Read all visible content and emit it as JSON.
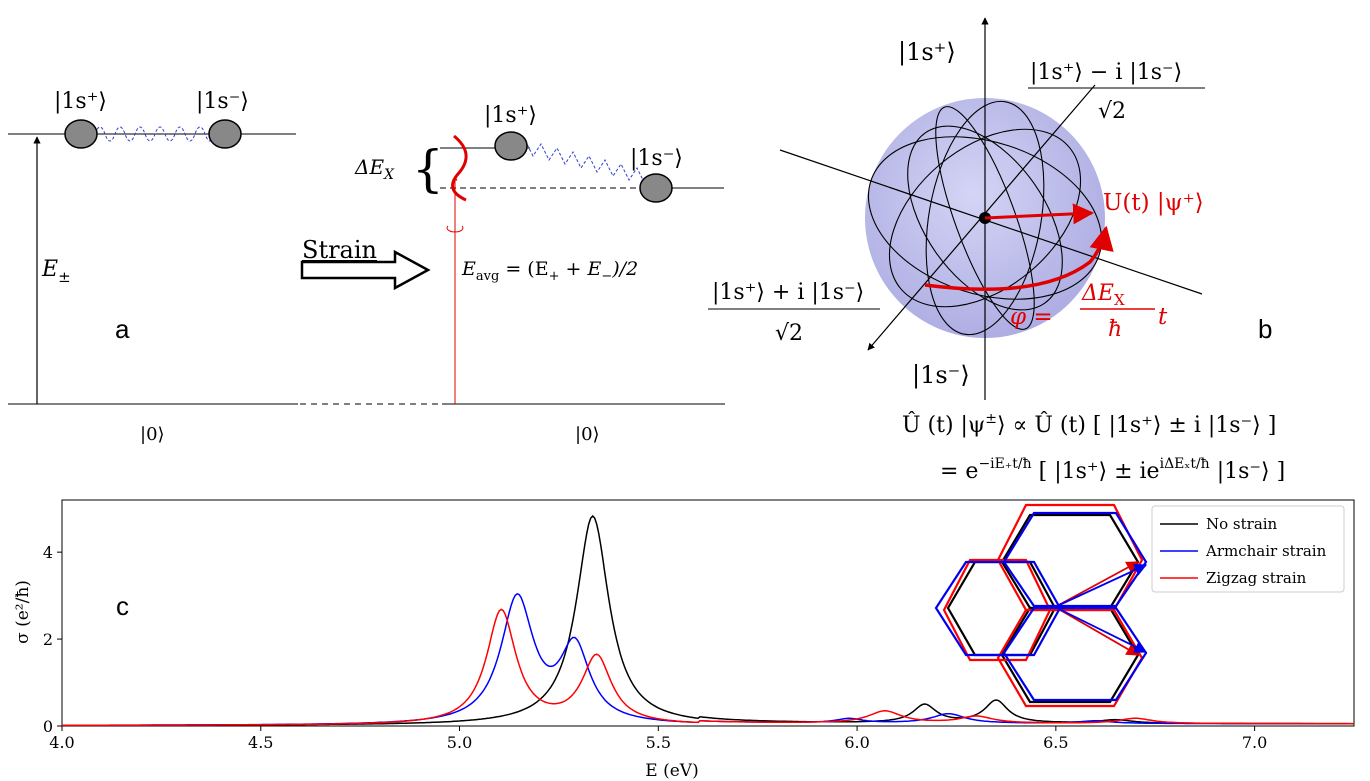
{
  "panel_a": {
    "label": "a",
    "ket_1s_plus": "|1s⁺⟩",
    "ket_1s_minus": "|1s⁻⟩",
    "energy_label": "E±",
    "ground_left": "|0⟩",
    "ground_right": "|0⟩",
    "strain_label": "Strain",
    "delta_label": "ΔEX",
    "avg_label": "Eavg = (E+ + E−)/2"
  },
  "panel_b": {
    "label": "b",
    "pole_top": "|1s⁺⟩",
    "pole_bottom": "|1s⁻⟩",
    "axis_minus": "(|1s⁺⟩ − i |1s⁻⟩) / √2",
    "axis_plus": "(|1s⁺⟩ + i |1s⁻⟩) / √2",
    "evolved_state": "U(t) |ψ⁺⟩",
    "phase": "φ = (ΔEX / ħ) t",
    "eq_line1": "Û (t) |ψ±⟩ ∝ Û (t) [ |1s⁺⟩ ± i |1s⁻⟩ ]",
    "eq_line2": "= e^(−iE+t/ħ) [ |1s⁺⟩ ± ie^(iΔEXt/ħ) |1s⁻⟩ ]"
  },
  "panel_c": {
    "label": "c",
    "chart_data": {
      "type": "line",
      "xlabel": "E (eV)",
      "ylabel": "σ (e²/ħ)",
      "xlim": [
        4.0,
        7.25
      ],
      "ylim": [
        0,
        5.2
      ],
      "xticks": [
        "4.0",
        "4.5",
        "5.0",
        "5.5",
        "6.0",
        "6.5",
        "7.0"
      ],
      "yticks": [
        "0",
        "2",
        "4"
      ],
      "legend_position": "top-right",
      "series": [
        {
          "name": "No strain",
          "color": "#000000",
          "peaks": [
            [
              5.335,
              4.82,
              0.05
            ],
            [
              6.17,
              0.42,
              0.035
            ],
            [
              6.35,
              0.52,
              0.035
            ],
            [
              6.65,
              0.08,
              0.05
            ]
          ]
        },
        {
          "name": "Armchair strain",
          "color": "#0000ff",
          "peaks": [
            [
              5.145,
              2.88,
              0.05
            ],
            [
              5.29,
              1.72,
              0.045
            ],
            [
              5.98,
              0.1,
              0.04
            ],
            [
              6.23,
              0.22,
              0.05
            ],
            [
              6.6,
              0.06,
              0.05
            ]
          ]
        },
        {
          "name": "Zigzag strain",
          "color": "#ff0000",
          "peaks": [
            [
              5.105,
              2.62,
              0.045
            ],
            [
              5.345,
              1.55,
              0.045
            ],
            [
              6.07,
              0.28,
              0.05
            ],
            [
              6.3,
              0.16,
              0.05
            ],
            [
              6.7,
              0.12,
              0.05
            ]
          ]
        }
      ],
      "background": 0.05
    }
  }
}
